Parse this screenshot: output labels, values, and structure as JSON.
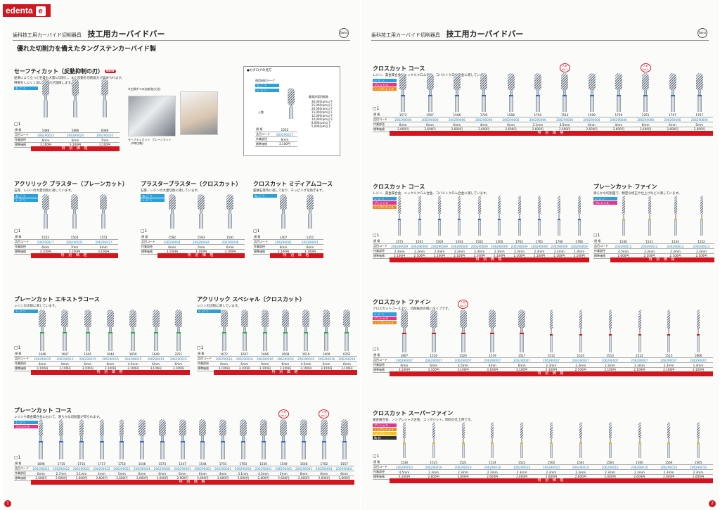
{
  "brand": {
    "name": "edenta",
    "mark": "e"
  },
  "pages": [
    {
      "category": "歯科技工用カーバイド切削器具",
      "title": "技工用カーバイドバー",
      "subtitle": "優れた切削力を備えたタングステンカーバイド製",
      "page_number": "1",
      "logo_text": "Swiss"
    },
    {
      "category": "歯科技工用カーバイド切削器具",
      "title": "技工用カーバイドバー",
      "subtitle": "",
      "page_number": "2",
      "logo_text": "Swiss"
    }
  ],
  "labels": {
    "row_model": "規 格",
    "row_code": "品目コード",
    "row_dia": "作業部径",
    "row_price": "標準価格",
    "price_bar": "特 別 価 格",
    "qty": "1",
    "new": "NEW"
  },
  "legend": {
    "title": "●カタログの見方",
    "material_label": "適用材料マーク",
    "tags": [
      "ね ご う",
      "レ ジ ン"
    ],
    "qty_label": "入数",
    "speed_label": "最高許容回転数",
    "speeds": [
      "30,000rpm以下",
      "25,000rpm以下",
      "20,000rpm以下",
      "15,000rpm以下",
      "12,000rpm以下",
      "10,000rpm以下",
      "8,000rpm以下",
      "5,000rpm以下"
    ],
    "row_model": "規 格",
    "row_code": "品目コード",
    "row_dia": "作業部径",
    "row_price": "標準価格",
    "model": "1552",
    "code": "206290017",
    "dia": "6mm",
    "price": "3,100円"
  },
  "photos": {
    "caption1": "※左側ずつの比較(拡大比)",
    "caption2": "セーフティカット",
    "caption3": "プレーンカット",
    "caption4": "(4本比較)"
  },
  "sections": [
    {
      "id": "safety",
      "title": "セーフティカット（反動抑制の刃）",
      "new": true,
      "desc": [
        "従来により立った石膏も大量に切削し、また反動を切削能力が高められます。",
        "特徴をしにくく高い切削力が発揮します。"
      ],
      "tags": [
        {
          "label": "ね ご う",
          "color": "#2a9fd8"
        }
      ],
      "models": [
        "5486",
        "5886",
        "6086"
      ],
      "codes": [
        "206290023",
        "206290024",
        "206290024"
      ],
      "dias": [
        "6mm",
        "6mm",
        "7mm"
      ],
      "prices": [
        "3,100円",
        "3,100円",
        "3,100円"
      ]
    },
    {
      "id": "acrylic-blaster",
      "title": "アクリリック ブラスター（プレーンカット）",
      "desc": [
        "石膏、レジンの大量切削に適しています。"
      ],
      "tags": [
        {
          "label": "ね ご う",
          "color": "#2a9fd8"
        },
        {
          "label": "レ ジ ン",
          "color": "#2a9fd8"
        }
      ],
      "models": [
        "1552",
        "1504",
        "1551"
      ],
      "codes": [
        "206290017",
        "206290021",
        "206290017"
      ],
      "dias": [
        "6mm",
        "7mm",
        "6mm"
      ],
      "prices": [
        "3,100円",
        "3,100円",
        "3,100円"
      ]
    },
    {
      "id": "plaster-blaster",
      "title": "プラスターブラスター（クロスカット）",
      "desc": [
        "石膏、レジンの大量切削に適しています。"
      ],
      "tags": [
        {
          "label": "ね ご う",
          "color": "#2a9fd8"
        },
        {
          "label": "レ ジ ン",
          "color": "#2a9fd8"
        }
      ],
      "models": [
        "1592",
        "1593",
        "1591"
      ],
      "codes": [
        "206290004",
        "206290004",
        "206290008"
      ],
      "dias": [
        "6mm",
        "7mm",
        "6mm"
      ],
      "prices": [
        "3,100円",
        "3,100円",
        "3,100円"
      ]
    },
    {
      "id": "crosscut-medium",
      "title": "クロスカット ミディアムコース",
      "desc": [
        "超硬石膏等に適しており、チッピングを防ぎます。"
      ],
      "tags": [
        {
          "label": "ね ご う",
          "color": "#2a9fd8"
        }
      ],
      "models": [
        "1407",
        "1451"
      ],
      "codes": [
        "206290001",
        "206290001"
      ],
      "dias": [
        "6mm",
        "6mm"
      ],
      "prices": [
        "3,100円",
        "3,100円"
      ]
    },
    {
      "id": "plain-extra-coarse",
      "title": "プレーンカット エキストラコース",
      "desc": [
        "レジンの切削に適しています。"
      ],
      "tags": [
        {
          "label": "レ ジ ン",
          "color": "#2a9fd8"
        }
      ],
      "models": [
        "1646",
        "1647",
        "1645",
        "1644",
        "1650",
        "1649",
        "2251"
      ],
      "codes": [
        "206290015",
        "206290015",
        "206290015",
        "206290015",
        "206290015",
        "206290015",
        "206290015"
      ],
      "dias": [
        "6mm",
        "6mm",
        "6mm",
        "6mm",
        "4.5mm",
        "6mm",
        "6mm"
      ],
      "prices": [
        "3,100円",
        "3,100円",
        "3,100円",
        "3,100円",
        "3,100円",
        "3,100円",
        "3,100円"
      ]
    },
    {
      "id": "acrylic-special",
      "title": "アクリリック スペシャル（クロスカット）",
      "desc": [
        "レジンの切削に適しています。"
      ],
      "tags": [
        {
          "label": "レ ジ ン",
          "color": "#2a9fd8"
        }
      ],
      "models": [
        "1672",
        "1607",
        "1606",
        "1608",
        "1610",
        "1609",
        "0251"
      ],
      "codes": [
        "206290016",
        "206290016",
        "206290016",
        "206290016",
        "206290016",
        "206290016",
        "206290016"
      ],
      "dias": [
        "6mm",
        "6mm",
        "6mm",
        "6mm",
        "4.5mm",
        "6mm",
        "6mm"
      ],
      "prices": [
        "3,100円",
        "3,100円",
        "3,100円",
        "3,100円",
        "3,100円",
        "3,100円",
        "3,100円"
      ]
    },
    {
      "id": "plain-coarse",
      "title": "プレーンカット コース",
      "desc": [
        "レジンや貴金属合金において、滑らかな切削面が得られます。"
      ],
      "tags": [
        {
          "label": "レ ジ ン",
          "color": "#2a9fd8"
        },
        {
          "label": "プレシャス",
          "color": "#e6338f"
        }
      ],
      "popular": [
        {
          "label": "人気 No.4",
          "index": 12
        },
        {
          "label": "人気 No.2",
          "index": 14
        }
      ],
      "models": [
        "1696",
        "1715",
        "1716",
        "1717",
        "1718",
        "1546",
        "1573",
        "1547",
        "1544",
        "1701",
        "1703",
        "1550",
        "1549",
        "1548",
        "1702",
        "1557"
      ],
      "codes": [
        "206290022",
        "206290022",
        "206290022",
        "206290022",
        "206290022",
        "206290001",
        "206290001",
        "206290001",
        "206290001",
        "206290001",
        "206290001",
        "206290001",
        "206290001",
        "206290001",
        "206290001",
        "206290001"
      ],
      "dias": [
        "6mm",
        "2.7mm",
        "3.1mm",
        "4mm",
        "5mm",
        "6mm",
        "6mm",
        "6mm",
        "6mm",
        "4mm",
        "3.1mm",
        "4.5mm",
        "5mm",
        "6mm",
        "6mm",
        "6mm"
      ],
      "prices": [
        "2,600円",
        "2,600円",
        "2,600円",
        "2,600円",
        "2,600円",
        "2,600円",
        "2,600円",
        "2,600円",
        "2,600円",
        "2,600円",
        "2,600円",
        "2,600円",
        "2,600円",
        "2,600円",
        "2,600円",
        "2,600円"
      ]
    },
    {
      "id": "crosscut-coarse",
      "title": "クロスカット コース",
      "desc": [
        "レジン、貴金属合金、ニッケルクロム合金、コバルトクロム合金に適しています。"
      ],
      "tags": [
        {
          "label": "レ ジ ン",
          "color": "#2a9fd8"
        },
        {
          "label": "プレシャス",
          "color": "#e6338f"
        },
        {
          "label": "ノンプレシャス",
          "color": "#f08a1c"
        }
      ],
      "popular": [
        {
          "label": "人気 No.1",
          "index": 6
        },
        {
          "label": "人気 No.3",
          "index": 9
        }
      ],
      "models": [
        "1572",
        "1507",
        "1506",
        "1705",
        "1508",
        "1704",
        "1510",
        "1509",
        "1706",
        "1251",
        "1707",
        "1767"
      ],
      "codes": [
        "206290006",
        "206290006",
        "206290006",
        "206290006",
        "206290006",
        "206290006",
        "206290006",
        "206290006",
        "206290006",
        "206290006",
        "206290006",
        "206290006"
      ],
      "dias": [
        "6mm",
        "6mm",
        "6mm",
        "4mm",
        "6mm",
        "3.1mm",
        "4.5mm",
        "6mm",
        "4mm",
        "6mm",
        "6mm",
        "5mm"
      ],
      "prices": [
        "2,600円",
        "2,600円",
        "2,600円",
        "2,600円",
        "2,600円",
        "2,600円",
        "2,600円",
        "2,600円",
        "2,600円",
        "2,600円",
        "2,600円",
        "2,600円"
      ]
    },
    {
      "id": "crosscut-coarse-2",
      "title": "クロスカット コース",
      "desc": [
        "レジン、貴金属合金、ニッケルクロム合金、コバルトクロム合金に適しています。"
      ],
      "tags": [
        {
          "label": "レ ジ ン",
          "color": "#2a9fd8"
        },
        {
          "label": "プレシャス",
          "color": "#e6338f"
        },
        {
          "label": "ノンプレシャス",
          "color": "#f08a1c"
        }
      ],
      "models": [
        "1571",
        "1561",
        "1504",
        "1503",
        "1502",
        "1505",
        "1762",
        "1761",
        "1760",
        "1766"
      ],
      "codes": [
        "206290009",
        "206290009",
        "206290009",
        "206290009",
        "206290009",
        "206290009",
        "206290009",
        "206290009",
        "206290009",
        "206290009"
      ],
      "dias": [
        "2.3mm",
        "2.3mm",
        "2.3mm",
        "2.3mm",
        "2.3mm",
        "2.3mm",
        "2.3mm",
        "2.3mm",
        "2.3mm",
        "1.4mm"
      ],
      "prices": [
        "2,100円",
        "2,100円",
        "2,100円",
        "2,100円",
        "2,100円",
        "2,100円",
        "2,100円",
        "2,100円",
        "2,100円",
        "2,100円"
      ]
    },
    {
      "id": "plain-fine",
      "title": "プレーンカット ファイン",
      "desc": [
        "滑らかな切削面で、精密な修正や仕上げなどに適しています。"
      ],
      "tags": [
        {
          "label": "レ ジ ン",
          "color": "#2a9fd8"
        },
        {
          "label": "プレシャス",
          "color": "#e6338f"
        }
      ],
      "models": [
        "1540",
        "1531",
        "1534",
        "1532"
      ],
      "codes": [
        "206290012",
        "206290012",
        "206290012",
        "206290012"
      ],
      "dias": [
        "4.5mm",
        "2.3mm",
        "2.3mm",
        "2.3mm"
      ],
      "prices": [
        "2,600円",
        "2,100円",
        "2,100円",
        "2,100円"
      ]
    },
    {
      "id": "crosscut-fine",
      "title": "クロスカット ファイン",
      "desc": [
        "クロスカットコースより、切削抵抗の軽いタイプです。"
      ],
      "tags": [
        {
          "label": "レ ジ ン",
          "color": "#2a9fd8"
        },
        {
          "label": "プレシャス",
          "color": "#e6338f"
        },
        {
          "label": "ノンプレシャス",
          "color": "#f08a1c"
        }
      ],
      "popular": [
        {
          "label": "人気 No.5",
          "index": 2
        }
      ],
      "models": [
        "1807",
        "1516",
        "1520",
        "1519",
        "1517",
        "1511",
        "1514",
        "1513",
        "1512",
        "1515",
        "1866"
      ],
      "codes": [
        "206290007",
        "206290007",
        "206290007",
        "206290007",
        "206290007",
        "206290007",
        "206290007",
        "206290007",
        "206290007",
        "206290007",
        "206290007"
      ],
      "dias": [
        "6mm",
        "6mm",
        "4.5mm",
        "6mm",
        "6mm",
        "2.3mm",
        "2.3mm",
        "2.3mm",
        "2.3mm",
        "2.3mm",
        "1.4mm"
      ],
      "prices": [
        "3,100円",
        "3,100円",
        "3,100円",
        "3,100円",
        "3,100円",
        "2,100円",
        "2,100円",
        "2,100円",
        "2,100円",
        "2,100円",
        "2,100円"
      ]
    },
    {
      "id": "crosscut-superfine",
      "title": "クロスカット スーパーファイン",
      "desc": [
        "貴金属合金、ノンプレシャス合金、コンポジット、陶材の仕上用です。"
      ],
      "tags": [
        {
          "label": "プレシャス",
          "color": "#e6338f"
        },
        {
          "label": "ノンプレシャス",
          "color": "#f08a1c"
        },
        {
          "label": "コンポジット",
          "color": "#f2c21a"
        },
        {
          "label": "陶 材",
          "color": "#333333"
        }
      ],
      "models": [
        "1530",
        "1525",
        "1521",
        "1524",
        "1522",
        "1562",
        "1561",
        "1563",
        "1560",
        "1564",
        "1565"
      ],
      "codes": [
        "206290010",
        "206290010",
        "206290010",
        "206290010",
        "206290010",
        "206290010",
        "206290010",
        "206290010",
        "206290010",
        "206290010",
        "206290010"
      ],
      "dias": [
        "4.5mm",
        "2.3mm",
        "2.3mm",
        "2.3mm",
        "2.3mm",
        "2.3mm",
        "2.3mm",
        "2.3mm",
        "2.3mm",
        "2.3mm",
        "2.3mm"
      ],
      "prices": [
        "3,100円",
        "2,600円",
        "2,600円",
        "2,600円",
        "2,600円",
        "2,600円",
        "2,600円",
        "2,600円",
        "2,600円",
        "2,600円",
        "2,600円"
      ]
    }
  ]
}
